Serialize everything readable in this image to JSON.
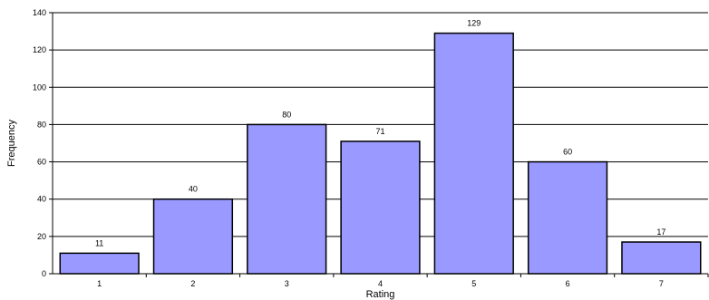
{
  "chart_data": {
    "type": "bar",
    "title": "",
    "xlabel": "Rating",
    "ylabel": "Frequency",
    "categories": [
      "1",
      "2",
      "3",
      "4",
      "5",
      "6",
      "7"
    ],
    "values": [
      11,
      40,
      80,
      71,
      129,
      60,
      17
    ],
    "data_labels": [
      "11",
      "40",
      "80",
      "71",
      "129",
      "60",
      "17"
    ],
    "ylim": [
      0,
      140
    ],
    "yticks": [
      "0",
      "20",
      "40",
      "60",
      "80",
      "100",
      "120",
      "140"
    ],
    "grid": true,
    "bar_color": "#9999ff",
    "bar_edge_color": "#000000"
  }
}
